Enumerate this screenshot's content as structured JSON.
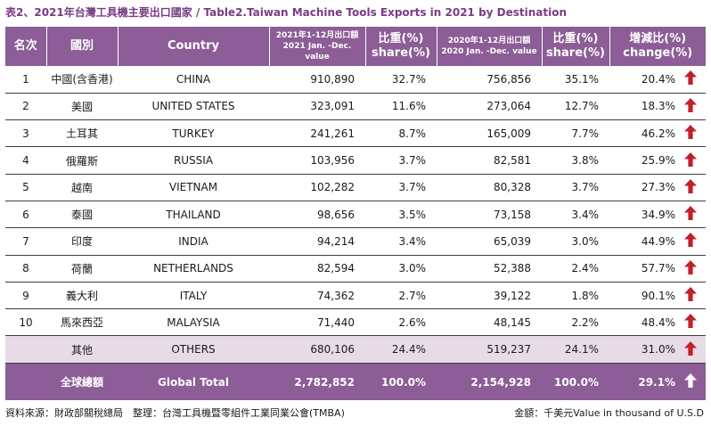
{
  "title": "表2、2021年台灣工具機主要出口國家 / Table2.Taiwan Machine Tools Exports in 2021 by Destination",
  "header": {
    "rank": "名次",
    "country_zh": "國別",
    "country_en": "Country",
    "value2021_zh": "2021年1-12月出口額",
    "value2021_en": "2021 Jan. -Dec. value",
    "share2021_zh": "比重(%)",
    "share2021_en": "share(%)",
    "value2020_zh": "2020年1-12月出口額",
    "value2020_en": "2020 Jan. -Dec. value",
    "share2020_zh": "比重(%)",
    "share2020_en": "share(%)",
    "change_zh": "增減比(%)",
    "change_en": "change(%)"
  },
  "rows": [
    {
      "rank": "1",
      "zh": "中國(含香港)",
      "en": "CHINA",
      "v2021": "910,890",
      "s2021": "32.7%",
      "v2020": "756,856",
      "s2020": "35.1%",
      "change": "20.4%",
      "direction": "up"
    },
    {
      "rank": "2",
      "zh": "美國",
      "en": "UNITED STATES",
      "v2021": "323,091",
      "s2021": "11.6%",
      "v2020": "273,064",
      "s2020": "12.7%",
      "change": "18.3%",
      "direction": "up"
    },
    {
      "rank": "3",
      "zh": "土耳其",
      "en": "TURKEY",
      "v2021": "241,261",
      "s2021": "8.7%",
      "v2020": "165,009",
      "s2020": "7.7%",
      "change": "46.2%",
      "direction": "up"
    },
    {
      "rank": "4",
      "zh": "俄羅斯",
      "en": "RUSSIA",
      "v2021": "103,956",
      "s2021": "3.7%",
      "v2020": "82,581",
      "s2020": "3.8%",
      "change": "25.9%",
      "direction": "up"
    },
    {
      "rank": "5",
      "zh": "越南",
      "en": "VIETNAM",
      "v2021": "102,282",
      "s2021": "3.7%",
      "v2020": "80,328",
      "s2020": "3.7%",
      "change": "27.3%",
      "direction": "up"
    },
    {
      "rank": "6",
      "zh": "泰國",
      "en": "THAILAND",
      "v2021": "98,656",
      "s2021": "3.5%",
      "v2020": "73,158",
      "s2020": "3.4%",
      "change": "34.9%",
      "direction": "up"
    },
    {
      "rank": "7",
      "zh": "印度",
      "en": "INDIA",
      "v2021": "94,214",
      "s2021": "3.4%",
      "v2020": "65,039",
      "s2020": "3.0%",
      "change": "44.9%",
      "direction": "up"
    },
    {
      "rank": "8",
      "zh": "荷蘭",
      "en": "NETHERLANDS",
      "v2021": "82,594",
      "s2021": "3.0%",
      "v2020": "52,388",
      "s2020": "2.4%",
      "change": "57.7%",
      "direction": "up"
    },
    {
      "rank": "9",
      "zh": "義大利",
      "en": "ITALY",
      "v2021": "74,362",
      "s2021": "2.7%",
      "v2020": "39,122",
      "s2020": "1.8%",
      "change": "90.1%",
      "direction": "up"
    },
    {
      "rank": "10",
      "zh": "馬來西亞",
      "en": "MALAYSIA",
      "v2021": "71,440",
      "s2021": "2.6%",
      "v2020": "48,145",
      "s2020": "2.2%",
      "change": "48.4%",
      "direction": "up"
    }
  ],
  "others": {
    "zh": "其他",
    "en": "OTHERS",
    "v2021": "680,106",
    "s2021": "24.4%",
    "v2020": "519,237",
    "s2020": "24.1%",
    "change": "31.0%",
    "direction": "up"
  },
  "total": {
    "zh": "全球總額",
    "en": "Global Total",
    "v2021": "2,782,852",
    "s2021": "100.0%",
    "v2020": "2,154,928",
    "s2020": "100.0%",
    "change": "29.1%",
    "direction": "up"
  },
  "footer": {
    "source": "資料來源：財政部關稅總局　整理：台灣工具機暨零組件工業同業公會(TMBA)",
    "unit": "金額：千美元Value in thousand of U.S.D"
  },
  "colors": {
    "header_bg": "#8c5d96",
    "others_bg": "#e6dbe7",
    "title": "#7a3b86",
    "arrow_up": "#c0202a",
    "arrow_total": "#ffffff"
  },
  "icons": {
    "increase": "arrow-up-icon"
  }
}
